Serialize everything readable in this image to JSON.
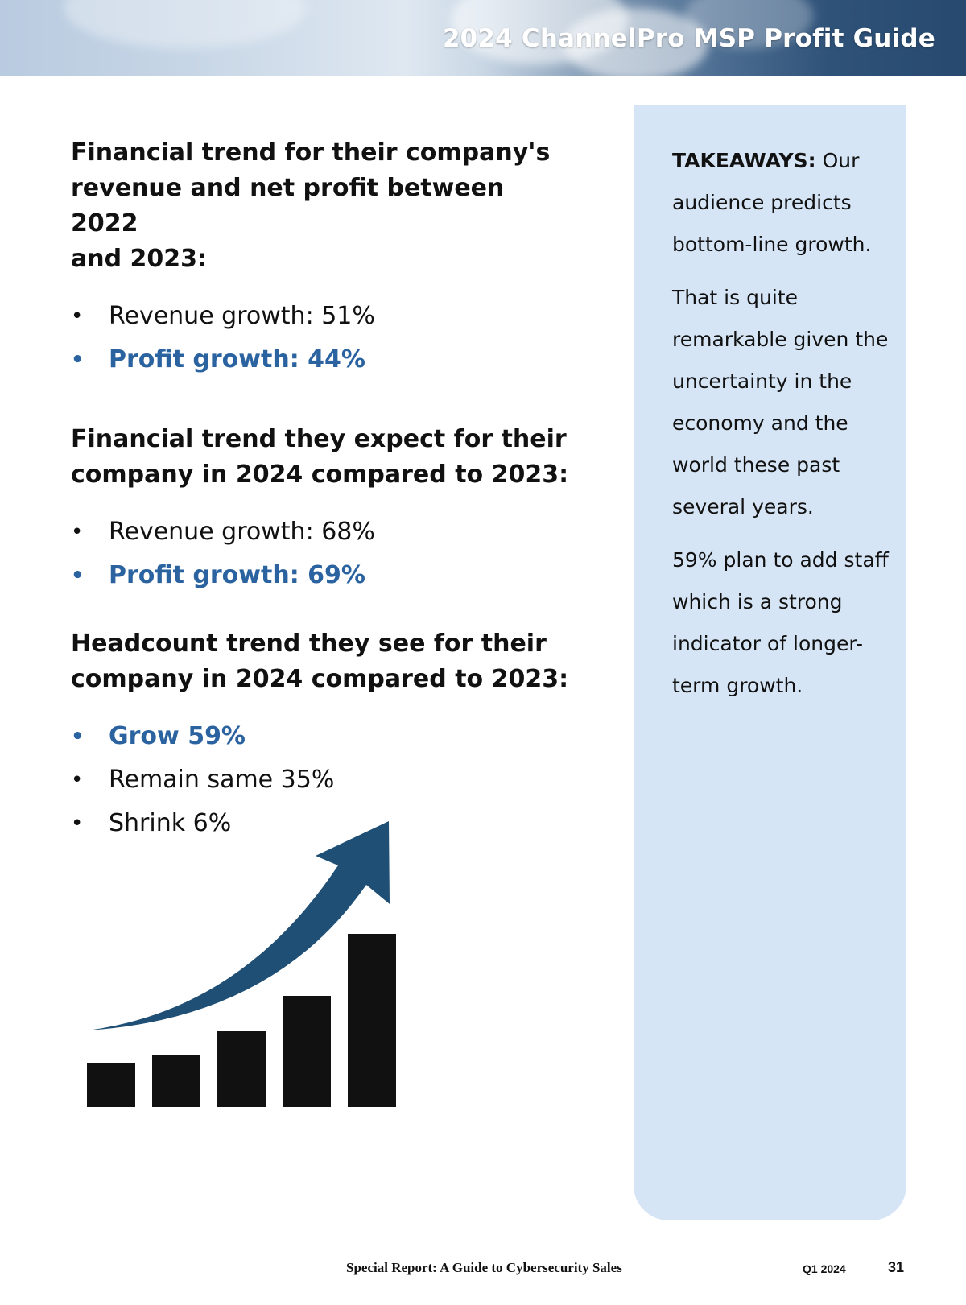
{
  "header": {
    "title": "2024 ChannelPro MSP Profit Guide"
  },
  "sections": [
    {
      "heading_lines": [
        "Financial trend for their company's",
        "revenue and net profit between 2022",
        "and 2023:"
      ],
      "bullets": [
        {
          "text": "Revenue growth: 51%",
          "highlight": false
        },
        {
          "text": "Profit growth: 44%",
          "highlight": true
        }
      ]
    },
    {
      "heading_lines": [
        "Financial trend they expect for their",
        "company in 2024 compared to 2023:"
      ],
      "bullets": [
        {
          "text": "Revenue growth: 68%",
          "highlight": false
        },
        {
          "text": "Profit growth: 69%",
          "highlight": true
        }
      ]
    },
    {
      "heading_lines": [
        "Headcount trend they see for their",
        "company in 2024 compared to 2023:"
      ],
      "bullets": [
        {
          "text": "Grow 59%",
          "highlight": true
        },
        {
          "text": "Remain same 35%",
          "highlight": false
        },
        {
          "text": "Shrink 6%",
          "highlight": false
        }
      ]
    }
  ],
  "bullet_glyph": "•",
  "takeaways": {
    "label": "TAKEAWAYS:",
    "lead": "Our audience predicts bottom-line growth.",
    "para2": "That is quite remarkable given the uncertainty in the economy and the world these past several years.",
    "para3": "59% plan to add staff which is a strong indicator of longer-term growth."
  },
  "graphic": {
    "icon": "growth-chart-icon",
    "bar_color": "#111111",
    "arrow_color": "#1f4f75"
  },
  "footer": {
    "report": "Special Report: A Guide to Cybersecurity Sales",
    "quarter": "Q1 2024",
    "page": "31"
  },
  "colors": {
    "accent": "#2b63a0",
    "panel": "#d6e5f5"
  }
}
